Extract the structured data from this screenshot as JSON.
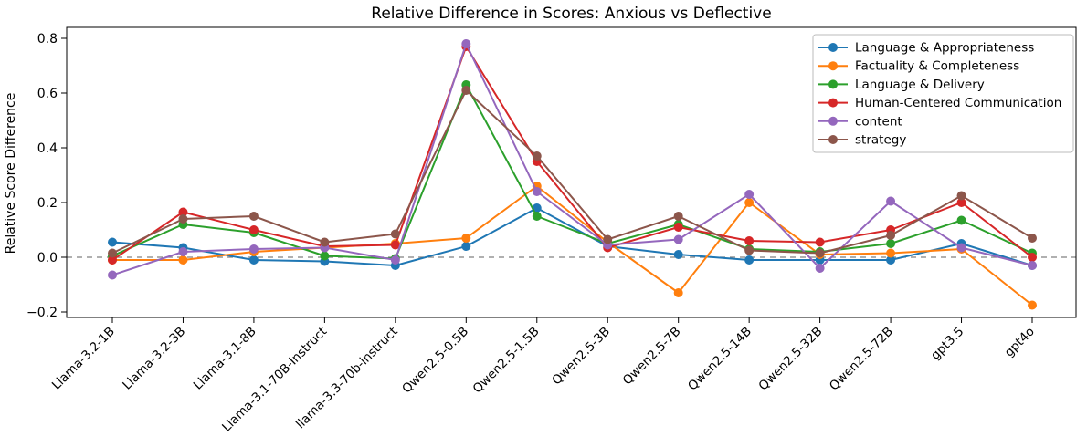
{
  "chart_data": {
    "type": "line",
    "title": "Relative Difference in Scores: Anxious vs Deflective",
    "xlabel": "",
    "ylabel": "Relative Score Difference",
    "categories": [
      "Llama-3.2-1B",
      "Llama-3.2-3B",
      "Llama-3.1-8B",
      "Llama-3.1-70B-Instruct",
      "llama-3.3-70b-instruct",
      "Qwen2.5-0.5B",
      "Qwen2.5-1.5B",
      "Qwen2.5-3B",
      "Qwen2.5-7B",
      "Qwen2.5-14B",
      "Qwen2.5-32B",
      "Qwen2.5-72B",
      "gpt3.5",
      "gpt4o"
    ],
    "series": [
      {
        "name": "Language & Appropriateness",
        "color": "#1f77b4",
        "values": [
          0.055,
          0.035,
          -0.01,
          -0.015,
          -0.03,
          0.04,
          0.18,
          0.04,
          0.01,
          -0.01,
          -0.01,
          -0.01,
          0.05,
          -0.03
        ]
      },
      {
        "name": "Factuality & Completeness",
        "color": "#ff7f0e",
        "values": [
          -0.01,
          -0.01,
          0.02,
          0.035,
          0.05,
          0.07,
          0.26,
          0.055,
          -0.13,
          0.2,
          0.01,
          0.015,
          0.03,
          -0.175
        ]
      },
      {
        "name": "Language & Delivery",
        "color": "#2ca02c",
        "values": [
          0.005,
          0.12,
          0.09,
          0.005,
          -0.005,
          0.63,
          0.15,
          0.05,
          0.12,
          0.03,
          0.02,
          0.05,
          0.135,
          0.015
        ]
      },
      {
        "name": "Human-Centered Communication",
        "color": "#d62728",
        "values": [
          -0.01,
          0.165,
          0.1,
          0.04,
          0.045,
          0.77,
          0.35,
          0.035,
          0.11,
          0.06,
          0.055,
          0.1,
          0.2,
          0.0
        ]
      },
      {
        "name": "content",
        "color": "#9467bd",
        "values": [
          -0.065,
          0.02,
          0.03,
          0.035,
          -0.01,
          0.78,
          0.24,
          0.045,
          0.065,
          0.23,
          -0.04,
          0.205,
          0.035,
          -0.03
        ]
      },
      {
        "name": "strategy",
        "color": "#8c564b",
        "values": [
          0.015,
          0.14,
          0.15,
          0.055,
          0.085,
          0.61,
          0.37,
          0.065,
          0.15,
          0.025,
          0.015,
          0.08,
          0.225,
          0.07
        ]
      }
    ],
    "yticks": [
      -0.2,
      0.0,
      0.2,
      0.4,
      0.6,
      0.8
    ],
    "ylim": [
      -0.22,
      0.84
    ],
    "zero_line": {
      "y": 0,
      "style": "dashed",
      "color": "#808080"
    },
    "legend": {
      "position": "upper right"
    },
    "grid": false,
    "marker": "o",
    "x_tick_rotation": 45,
    "axis_color": "#000000",
    "background": "#ffffff"
  }
}
